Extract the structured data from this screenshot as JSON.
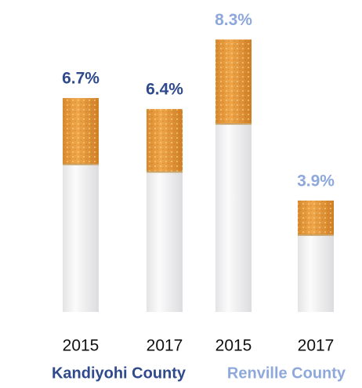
{
  "chart_data": {
    "type": "bar",
    "series": [
      {
        "name": "Kandiyohi County",
        "color": "#2f4a8c",
        "categories": [
          "2015",
          "2017"
        ],
        "values": [
          6.7,
          6.4
        ],
        "value_labels": [
          "6.7%",
          "6.4%"
        ]
      },
      {
        "name": "Renville County",
        "color": "#8ea8dc",
        "categories": [
          "2015",
          "2017"
        ],
        "values": [
          8.3,
          3.9
        ],
        "value_labels": [
          "8.3%",
          "3.9%"
        ]
      }
    ]
  }
}
